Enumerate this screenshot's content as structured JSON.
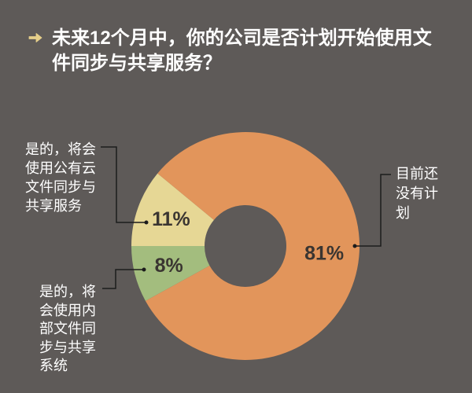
{
  "title_icon": "arrow-right-icon",
  "colors": {
    "background": "#5e5a58",
    "title_text": "#ffffff",
    "title_icon": "#e6cf8a",
    "label_text": "#ffffff",
    "value_label_text": "#3a3531",
    "leader_line": "#1c1c1c"
  },
  "chart_data": {
    "type": "pie",
    "donut": true,
    "title": "未来12个月中，你的公司是否计划开始使用文件同步与共享服务？",
    "categories": [
      "是的，将会使用公有云文件同步与共享服务",
      "是的，将会使用内部文件同步与共享系统",
      "目前还没有计划"
    ],
    "values": [
      11,
      8,
      81
    ],
    "value_labels": [
      "11%",
      "8%",
      "81%"
    ],
    "colors": [
      "#e6d795",
      "#a3bd7e",
      "#e2955b"
    ]
  }
}
